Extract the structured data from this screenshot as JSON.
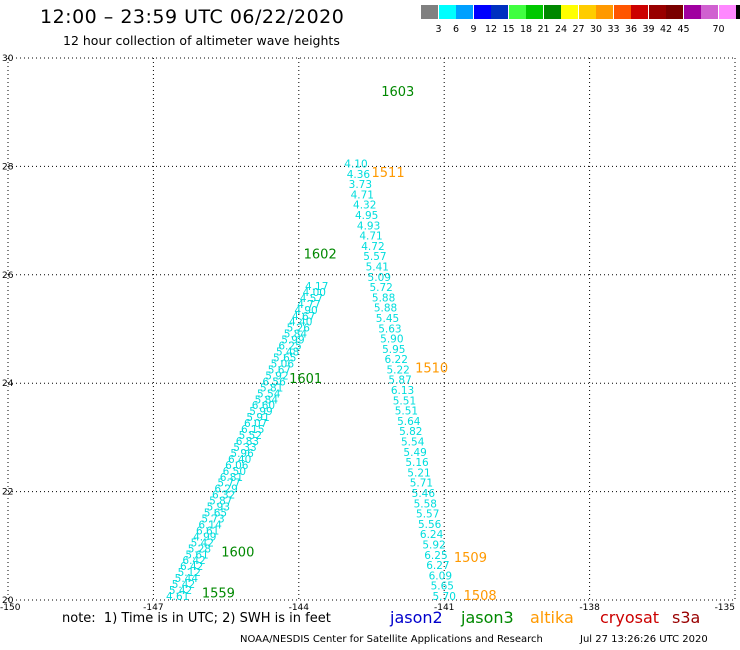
{
  "header": {
    "title": "12:00 – 23:59 UTC 06/22/2020",
    "subtitle": "12 hour collection of altimeter wave heights"
  },
  "legend": {
    "unit": "(ft)",
    "colors": [
      "#808080",
      "#00ffff",
      "#00a0ff",
      "#0000ff",
      "#0030c0",
      "#40ff40",
      "#00c800",
      "#008800",
      "#ffff00",
      "#ffcc00",
      "#ff9900",
      "#ff5500",
      "#cc0000",
      "#990000",
      "#7a0000",
      "#a000a0",
      "#d060d0",
      "#ff88ff",
      "#000000"
    ],
    "labels": [
      "3",
      "6",
      "9",
      "12",
      "15",
      "18",
      "21",
      "24",
      "27",
      "30",
      "33",
      "36",
      "39",
      "42",
      "45",
      "70"
    ]
  },
  "footer": {
    "note": "note:  1) Time is in UTC; 2) SWH is in feet",
    "credit": "NOAA/NESDIS Center for Satellite Applications and Research",
    "timestamp": "Jul 27 13:26:26 UTC 2020",
    "satellites": [
      {
        "name": "jason2",
        "color": "#0000cc"
      },
      {
        "name": "jason3",
        "color": "#008800"
      },
      {
        "name": "altika",
        "color": "#ff9900"
      },
      {
        "name": "cryosat",
        "color": "#cc0000"
      },
      {
        "name": "s3a",
        "color": "#990000"
      }
    ]
  },
  "chart_data": {
    "type": "scatter",
    "xlim": [
      -150,
      -135
    ],
    "ylim": [
      20,
      30
    ],
    "x_ticks": [
      "-150",
      "-147",
      "-144",
      "-141",
      "-138",
      "-135"
    ],
    "y_ticks": [
      "20",
      "22",
      "24",
      "26",
      "28",
      "30"
    ],
    "grid": true,
    "point_color": "#00dddd",
    "tracks": [
      {
        "name": "ascending-track",
        "points": [
          {
            "lon": -146.5,
            "lat": 20.0,
            "v": "4.61"
          },
          {
            "lon": -146.44,
            "lat": 20.11,
            "v": "5.42"
          },
          {
            "lon": -146.38,
            "lat": 20.22,
            "v": "5.42"
          },
          {
            "lon": -146.32,
            "lat": 20.33,
            "v": "5.44"
          },
          {
            "lon": -146.26,
            "lat": 20.44,
            "v": "5.12"
          },
          {
            "lon": -146.21,
            "lat": 20.55,
            "v": "6.42"
          },
          {
            "lon": -146.16,
            "lat": 20.66,
            "v": "6.42"
          },
          {
            "lon": -146.1,
            "lat": 20.77,
            "v": "5.61"
          },
          {
            "lon": -146.05,
            "lat": 20.88,
            "v": "5.28"
          },
          {
            "lon": -145.99,
            "lat": 20.99,
            "v": "5.42"
          },
          {
            "lon": -145.94,
            "lat": 21.1,
            "v": "4.99"
          },
          {
            "lon": -145.88,
            "lat": 21.21,
            "v": "6.61"
          },
          {
            "lon": -145.83,
            "lat": 21.32,
            "v": "6.14"
          },
          {
            "lon": -145.77,
            "lat": 21.43,
            "v": "5.73"
          },
          {
            "lon": -145.72,
            "lat": 21.54,
            "v": "5.65"
          },
          {
            "lon": -145.66,
            "lat": 21.65,
            "v": "5.93"
          },
          {
            "lon": -145.61,
            "lat": 21.76,
            "v": "5.87"
          },
          {
            "lon": -145.55,
            "lat": 21.87,
            "v": "6.32"
          },
          {
            "lon": -145.5,
            "lat": 21.98,
            "v": "6.29"
          },
          {
            "lon": -145.44,
            "lat": 22.09,
            "v": "5.77"
          },
          {
            "lon": -145.39,
            "lat": 22.2,
            "v": "6.81"
          },
          {
            "lon": -145.33,
            "lat": 22.31,
            "v": "6.50"
          },
          {
            "lon": -145.28,
            "lat": 22.42,
            "v": "6.06"
          },
          {
            "lon": -145.22,
            "lat": 22.53,
            "v": "6.40"
          },
          {
            "lon": -145.17,
            "lat": 22.64,
            "v": "5.96"
          },
          {
            "lon": -145.11,
            "lat": 22.75,
            "v": "5.33"
          },
          {
            "lon": -145.06,
            "lat": 22.86,
            "v": "6.83"
          },
          {
            "lon": -145.0,
            "lat": 22.97,
            "v": "5.52"
          },
          {
            "lon": -144.95,
            "lat": 23.08,
            "v": "6.15"
          },
          {
            "lon": -144.89,
            "lat": 23.19,
            "v": "6.07"
          },
          {
            "lon": -144.84,
            "lat": 23.3,
            "v": "5.91"
          },
          {
            "lon": -144.78,
            "lat": 23.41,
            "v": "5.99"
          },
          {
            "lon": -144.73,
            "lat": 23.52,
            "v": "6.60"
          },
          {
            "lon": -144.67,
            "lat": 23.63,
            "v": "5.84"
          },
          {
            "lon": -144.62,
            "lat": 23.74,
            "v": "5.54"
          },
          {
            "lon": -144.56,
            "lat": 23.85,
            "v": "5.81"
          },
          {
            "lon": -144.51,
            "lat": 23.96,
            "v": "6.56"
          },
          {
            "lon": -144.45,
            "lat": 24.07,
            "v": "5.92"
          },
          {
            "lon": -144.4,
            "lat": 24.18,
            "v": "5.67"
          },
          {
            "lon": -144.34,
            "lat": 24.29,
            "v": "5.06"
          },
          {
            "lon": -144.29,
            "lat": 24.4,
            "v": "5.65"
          },
          {
            "lon": -144.23,
            "lat": 24.51,
            "v": "5.48"
          },
          {
            "lon": -144.18,
            "lat": 24.62,
            "v": "6.25"
          },
          {
            "lon": -144.12,
            "lat": 24.73,
            "v": "5.99"
          },
          {
            "lon": -144.07,
            "lat": 24.84,
            "v": "5.84"
          },
          {
            "lon": -144.01,
            "lat": 24.95,
            "v": "5.26"
          },
          {
            "lon": -143.96,
            "lat": 25.06,
            "v": "4.40"
          },
          {
            "lon": -143.9,
            "lat": 25.17,
            "v": "4.67"
          },
          {
            "lon": -143.85,
            "lat": 25.28,
            "v": "4.90"
          },
          {
            "lon": -143.79,
            "lat": 25.39,
            "v": "4.77"
          },
          {
            "lon": -143.74,
            "lat": 25.5,
            "v": "4.57"
          },
          {
            "lon": -143.68,
            "lat": 25.61,
            "v": "4.00"
          },
          {
            "lon": -143.63,
            "lat": 25.72,
            "v": "4.17"
          }
        ]
      },
      {
        "name": "descending-track",
        "points": [
          {
            "lon": -141.0,
            "lat": 20.0,
            "v": "5.70"
          },
          {
            "lon": -141.04,
            "lat": 20.19,
            "v": "5.65"
          },
          {
            "lon": -141.08,
            "lat": 20.38,
            "v": "6.09"
          },
          {
            "lon": -141.13,
            "lat": 20.57,
            "v": "6.27"
          },
          {
            "lon": -141.17,
            "lat": 20.76,
            "v": "6.25"
          },
          {
            "lon": -141.21,
            "lat": 20.95,
            "v": "5.92"
          },
          {
            "lon": -141.26,
            "lat": 21.14,
            "v": "6.24"
          },
          {
            "lon": -141.3,
            "lat": 21.33,
            "v": "5.56"
          },
          {
            "lon": -141.34,
            "lat": 21.52,
            "v": "5.57"
          },
          {
            "lon": -141.39,
            "lat": 21.71,
            "v": "5.58"
          },
          {
            "lon": -141.43,
            "lat": 21.9,
            "v": "5.46"
          },
          {
            "lon": -141.47,
            "lat": 22.09,
            "v": "5.71"
          },
          {
            "lon": -141.52,
            "lat": 22.28,
            "v": "5.21"
          },
          {
            "lon": -141.56,
            "lat": 22.47,
            "v": "5.16"
          },
          {
            "lon": -141.6,
            "lat": 22.66,
            "v": "5.49"
          },
          {
            "lon": -141.65,
            "lat": 22.85,
            "v": "5.54"
          },
          {
            "lon": -141.69,
            "lat": 23.04,
            "v": "5.82"
          },
          {
            "lon": -141.73,
            "lat": 23.23,
            "v": "5.64"
          },
          {
            "lon": -141.78,
            "lat": 23.42,
            "v": "5.51"
          },
          {
            "lon": -141.82,
            "lat": 23.61,
            "v": "5.51"
          },
          {
            "lon": -141.86,
            "lat": 23.8,
            "v": "6.13"
          },
          {
            "lon": -141.91,
            "lat": 23.99,
            "v": "5.87"
          },
          {
            "lon": -141.95,
            "lat": 24.18,
            "v": "5.22"
          },
          {
            "lon": -141.99,
            "lat": 24.37,
            "v": "6.22"
          },
          {
            "lon": -142.04,
            "lat": 24.56,
            "v": "5.95"
          },
          {
            "lon": -142.08,
            "lat": 24.75,
            "v": "5.90"
          },
          {
            "lon": -142.12,
            "lat": 24.94,
            "v": "5.63"
          },
          {
            "lon": -142.17,
            "lat": 25.13,
            "v": "5.45"
          },
          {
            "lon": -142.21,
            "lat": 25.32,
            "v": "5.88"
          },
          {
            "lon": -142.25,
            "lat": 25.51,
            "v": "5.88"
          },
          {
            "lon": -142.3,
            "lat": 25.7,
            "v": "5.72"
          },
          {
            "lon": -142.34,
            "lat": 25.89,
            "v": "5.09"
          },
          {
            "lon": -142.38,
            "lat": 26.08,
            "v": "5.41"
          },
          {
            "lon": -142.43,
            "lat": 26.27,
            "v": "5.57"
          },
          {
            "lon": -142.47,
            "lat": 26.46,
            "v": "4.72"
          },
          {
            "lon": -142.51,
            "lat": 26.65,
            "v": "4.71"
          },
          {
            "lon": -142.56,
            "lat": 26.84,
            "v": "4.93"
          },
          {
            "lon": -142.6,
            "lat": 27.03,
            "v": "4.95"
          },
          {
            "lon": -142.64,
            "lat": 27.22,
            "v": "4.32"
          },
          {
            "lon": -142.69,
            "lat": 27.41,
            "v": "4.71"
          },
          {
            "lon": -142.73,
            "lat": 27.6,
            "v": "3.73"
          },
          {
            "lon": -142.77,
            "lat": 27.79,
            "v": "4.36"
          },
          {
            "lon": -142.82,
            "lat": 27.98,
            "v": "4.10"
          }
        ]
      }
    ],
    "pass_labels": [
      {
        "text": "1559",
        "lon": -146.0,
        "lat": 20.05,
        "color": "#008800"
      },
      {
        "text": "1600",
        "lon": -145.6,
        "lat": 20.8,
        "color": "#008800"
      },
      {
        "text": "1601",
        "lon": -144.2,
        "lat": 24.0,
        "color": "#008800"
      },
      {
        "text": "1602",
        "lon": -143.9,
        "lat": 26.3,
        "color": "#008800"
      },
      {
        "text": "1603",
        "lon": -142.3,
        "lat": 29.3,
        "color": "#008800"
      },
      {
        "text": "1508",
        "lon": -140.6,
        "lat": 20.0,
        "color": "#ff9900"
      },
      {
        "text": "1509",
        "lon": -140.8,
        "lat": 20.7,
        "color": "#ff9900"
      },
      {
        "text": "1510",
        "lon": -141.6,
        "lat": 24.2,
        "color": "#ff9900"
      },
      {
        "text": "1511",
        "lon": -142.5,
        "lat": 27.8,
        "color": "#ff9900"
      }
    ]
  }
}
